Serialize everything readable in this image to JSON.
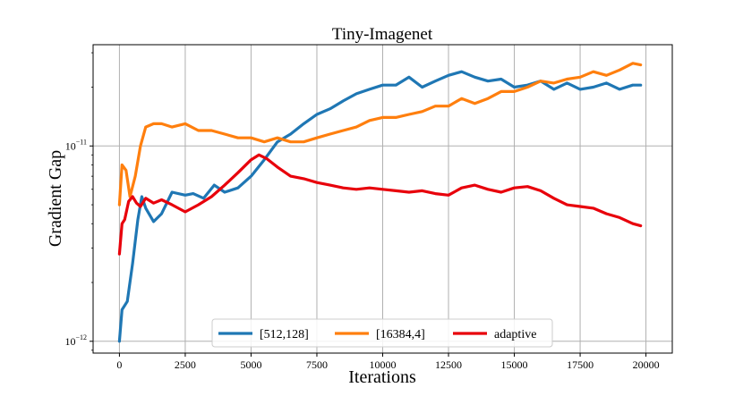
{
  "chart_data": {
    "type": "line",
    "title": "Tiny-Imagenet",
    "xlabel": "Iterations",
    "ylabel": "Gradient Gap",
    "yscale": "log",
    "xlim": [
      -1000,
      21000
    ],
    "ylim": [
      8.7e-13,
      3.3e-11
    ],
    "xticks": [
      0,
      2500,
      5000,
      7500,
      10000,
      12500,
      15000,
      17500,
      20000
    ],
    "xtick_labels": [
      "0",
      "2500",
      "5000",
      "7500",
      "10000",
      "12500",
      "15000",
      "17500",
      "20000"
    ],
    "yticks": [
      1e-12,
      1e-11
    ],
    "ytick_labels": [
      {
        "base": "10",
        "exp": "−12"
      },
      {
        "base": "10",
        "exp": "−11"
      }
    ],
    "grid": true,
    "legend_position": "lower-center",
    "series": [
      {
        "name": "[512,128]",
        "color": "#1f77b4",
        "x": [
          0,
          100,
          300,
          500,
          700,
          850,
          1000,
          1300,
          1600,
          2000,
          2500,
          2800,
          3200,
          3600,
          4000,
          4500,
          5000,
          5500,
          6000,
          6500,
          7000,
          7500,
          8000,
          8500,
          9000,
          9500,
          10000,
          10500,
          11000,
          11500,
          12000,
          12500,
          13000,
          13500,
          14000,
          14500,
          15000,
          15500,
          16000,
          16500,
          17000,
          17500,
          18000,
          18500,
          19000,
          19500,
          19800
        ],
        "y": [
          1e-12,
          1.45e-12,
          1.6e-12,
          2.5e-12,
          4.2e-12,
          5.5e-12,
          4.8e-12,
          4.1e-12,
          4.5e-12,
          5.8e-12,
          5.6e-12,
          5.7e-12,
          5.4e-12,
          6.3e-12,
          5.8e-12,
          6.1e-12,
          7e-12,
          8.5e-12,
          1.05e-11,
          1.15e-11,
          1.3e-11,
          1.45e-11,
          1.55e-11,
          1.7e-11,
          1.85e-11,
          1.95e-11,
          2.05e-11,
          2.05e-11,
          2.25e-11,
          2e-11,
          2.15e-11,
          2.3e-11,
          2.4e-11,
          2.25e-11,
          2.15e-11,
          2.2e-11,
          2e-11,
          2.05e-11,
          2.15e-11,
          1.95e-11,
          2.1e-11,
          1.95e-11,
          2e-11,
          2.1e-11,
          1.95e-11,
          2.05e-11,
          2.05e-11
        ]
      },
      {
        "name": "[16384,4]",
        "color": "#ff7f0e",
        "x": [
          0,
          100,
          250,
          400,
          600,
          800,
          1000,
          1300,
          1600,
          2000,
          2500,
          3000,
          3500,
          4000,
          4500,
          5000,
          5500,
          6000,
          6500,
          7000,
          7500,
          8000,
          8500,
          9000,
          9500,
          10000,
          10500,
          11000,
          11500,
          12000,
          12500,
          13000,
          13500,
          14000,
          14500,
          15000,
          15500,
          16000,
          16500,
          17000,
          17500,
          18000,
          18500,
          19000,
          19500,
          19800
        ],
        "y": [
          5e-12,
          8e-12,
          7.5e-12,
          5.5e-12,
          7e-12,
          1e-11,
          1.25e-11,
          1.3e-11,
          1.3e-11,
          1.25e-11,
          1.3e-11,
          1.2e-11,
          1.2e-11,
          1.15e-11,
          1.1e-11,
          1.1e-11,
          1.05e-11,
          1.1e-11,
          1.05e-11,
          1.05e-11,
          1.1e-11,
          1.15e-11,
          1.2e-11,
          1.25e-11,
          1.35e-11,
          1.4e-11,
          1.4e-11,
          1.45e-11,
          1.5e-11,
          1.6e-11,
          1.6e-11,
          1.75e-11,
          1.65e-11,
          1.75e-11,
          1.9e-11,
          1.9e-11,
          2e-11,
          2.15e-11,
          2.1e-11,
          2.2e-11,
          2.25e-11,
          2.4e-11,
          2.3e-11,
          2.45e-11,
          2.65e-11,
          2.6e-11
        ]
      },
      {
        "name": "adaptive",
        "color": "#e8000b",
        "x": [
          0,
          100,
          200,
          350,
          500,
          650,
          800,
          1000,
          1300,
          1600,
          2000,
          2500,
          3000,
          3500,
          4000,
          4500,
          5000,
          5300,
          5600,
          6000,
          6500,
          7000,
          7500,
          8000,
          8500,
          9000,
          9500,
          10000,
          10500,
          11000,
          11500,
          12000,
          12500,
          13000,
          13500,
          14000,
          14500,
          15000,
          15500,
          16000,
          16500,
          17000,
          17500,
          18000,
          18500,
          19000,
          19500,
          19800
        ],
        "y": [
          2.8e-12,
          4e-12,
          4.2e-12,
          5.2e-12,
          5.5e-12,
          5.1e-12,
          4.9e-12,
          5.4e-12,
          5.1e-12,
          5.3e-12,
          5e-12,
          4.6e-12,
          5e-12,
          5.5e-12,
          6.3e-12,
          7.3e-12,
          8.5e-12,
          9e-12,
          8.6e-12,
          7.8e-12,
          7e-12,
          6.8e-12,
          6.5e-12,
          6.3e-12,
          6.1e-12,
          6e-12,
          6.1e-12,
          6e-12,
          5.9e-12,
          5.8e-12,
          5.9e-12,
          5.7e-12,
          5.6e-12,
          6.1e-12,
          6.3e-12,
          6e-12,
          5.8e-12,
          6.1e-12,
          6.2e-12,
          5.9e-12,
          5.4e-12,
          5e-12,
          4.9e-12,
          4.8e-12,
          4.5e-12,
          4.3e-12,
          4e-12,
          3.9e-12
        ]
      }
    ]
  }
}
